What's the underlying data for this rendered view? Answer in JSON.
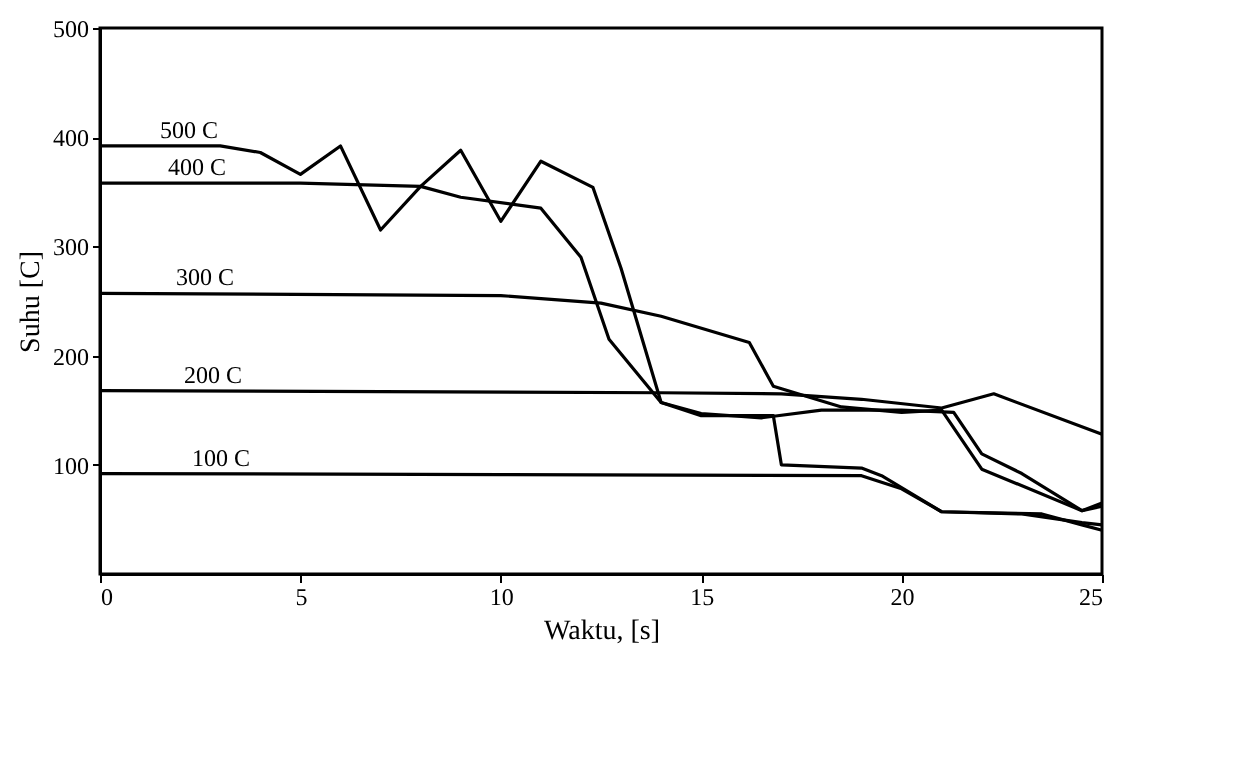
{
  "chart_data": {
    "type": "line",
    "xlabel": "Waktu, [s]",
    "ylabel": "Suhu [C]",
    "xlim": [
      0,
      25
    ],
    "xticks": [
      0,
      5,
      10,
      15,
      20,
      25
    ],
    "ylim": [
      0,
      500
    ],
    "yticks": [
      100,
      200,
      300,
      400,
      500
    ],
    "grid": false,
    "series": [
      {
        "name": "500 C",
        "color": "#000000",
        "x": [
          0,
          1,
          2,
          3,
          4,
          5,
          6,
          7,
          8,
          9,
          10,
          11,
          12.3,
          13,
          14,
          15,
          16.5,
          18,
          20,
          21.3,
          22,
          23,
          24.5,
          25
        ],
        "values": [
          392,
          392,
          392,
          392,
          386,
          366,
          392,
          315,
          355,
          388,
          323,
          378,
          354,
          280,
          157,
          147,
          143,
          150,
          150,
          148,
          110,
          92,
          58,
          65
        ]
      },
      {
        "name": "400 C",
        "color": "#000000",
        "x": [
          0,
          5,
          8,
          9,
          11,
          12,
          12.7,
          14,
          15,
          16.8,
          17,
          19,
          19.5,
          21,
          23,
          24.5,
          25
        ],
        "values": [
          358,
          358,
          355,
          345,
          335,
          290,
          215,
          157,
          145,
          145,
          100,
          97,
          90,
          57,
          55,
          47,
          45
        ]
      },
      {
        "name": "300 C",
        "color": "#000000",
        "x": [
          0,
          10,
          12.5,
          14,
          16.2,
          16.8,
          18.5,
          20,
          21,
          22,
          24.5,
          25
        ],
        "values": [
          257,
          255,
          248,
          236,
          212,
          172,
          153,
          148,
          150,
          96,
          58,
          62
        ]
      },
      {
        "name": "200 C",
        "color": "#000000",
        "x": [
          0,
          14,
          17,
          19,
          21,
          22.3,
          25
        ],
        "values": [
          168,
          166,
          165,
          160,
          152,
          165,
          128
        ]
      },
      {
        "name": "100 C",
        "color": "#000000",
        "x": [
          0,
          10,
          19,
          20,
          21,
          23.5,
          24.5,
          25
        ],
        "values": [
          92,
          91,
          90,
          78,
          57,
          55,
          45,
          40
        ]
      }
    ]
  }
}
